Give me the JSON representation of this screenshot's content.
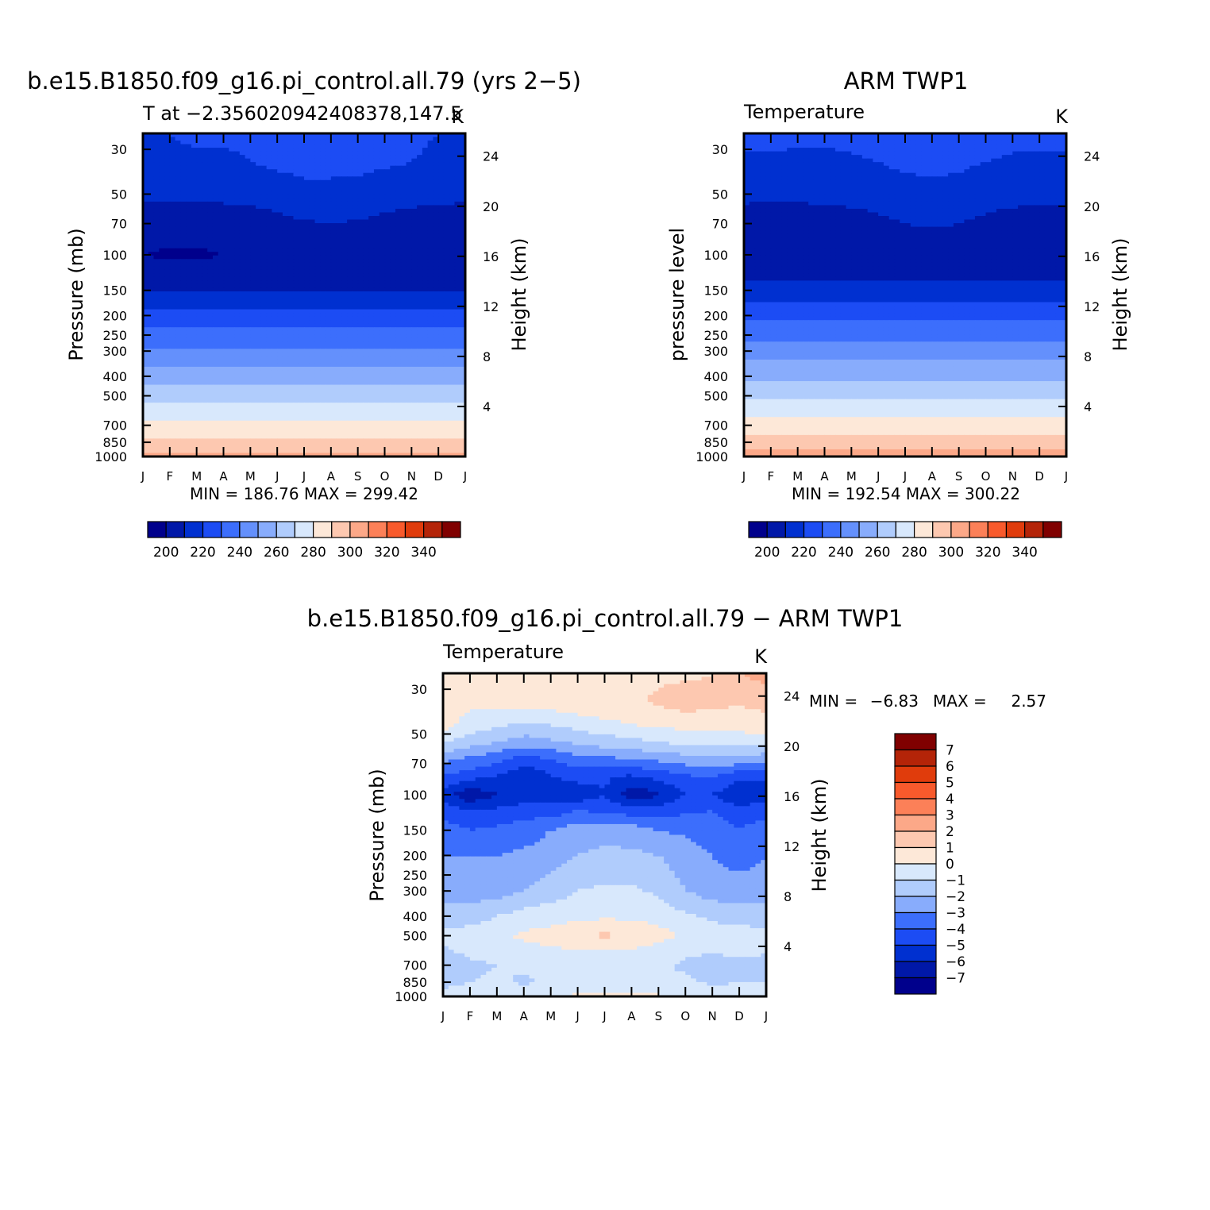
{
  "palette": {
    "temperature": [
      "#00008c",
      "#0018a8",
      "#0030d0",
      "#1c4cf4",
      "#3c6efc",
      "#6490fc",
      "#88acfc",
      "#b0ccfc",
      "#d8e8fc",
      "#fde8d8",
      "#fdc8b0",
      "#fca888",
      "#fc8058",
      "#f85a2c",
      "#e03c0c",
      "#b42408",
      "#800000"
    ],
    "difference": [
      "#00008c",
      "#0018a8",
      "#0030d0",
      "#1c4cf4",
      "#3c6efc",
      "#88acfc",
      "#b0ccfc",
      "#d8e8fc",
      "#fde8d8",
      "#fdc8b0",
      "#fca888",
      "#fc8058",
      "#f85a2c",
      "#e03c0c",
      "#b42408",
      "#800000"
    ]
  },
  "chart_data": [
    {
      "type": "heatmap",
      "title": "b.e15.B1850.f09_g16.pi_control.all.79 (yrs 2−5)",
      "subtitle_left": "T at −2.356020942408378,147.5",
      "units": "K",
      "ylabel": "Pressure (mb)",
      "ylabel_right": "Height (km)",
      "x_tick_labels": [
        "J",
        "F",
        "M",
        "A",
        "M",
        "J",
        "J",
        "A",
        "S",
        "O",
        "N",
        "D",
        "J"
      ],
      "y_ticks": [
        30,
        50,
        70,
        100,
        150,
        200,
        250,
        300,
        400,
        500,
        700,
        850,
        1000
      ],
      "height_ticks": [
        4,
        8,
        12,
        16,
        20,
        24
      ],
      "ylim": [
        1000,
        25
      ],
      "yscale": "log",
      "stats": "MIN = 186.76 MAX = 299.42",
      "colorbar_labels": [
        "200",
        "220",
        "240",
        "260",
        "280",
        "300",
        "320",
        "340"
      ],
      "colorbar_levels": [
        190,
        195,
        200,
        205,
        210,
        215,
        220,
        225,
        230,
        235,
        240,
        245,
        250,
        255,
        260,
        265,
        270,
        275,
        280,
        285,
        290,
        295,
        300,
        305,
        310,
        315,
        320,
        325,
        330,
        335,
        340,
        345
      ],
      "profile_levels": [
        25,
        30,
        40,
        50,
        60,
        70,
        80,
        100,
        125,
        150,
        175,
        200,
        250,
        300,
        350,
        400,
        450,
        500,
        600,
        700,
        850,
        925,
        1000
      ],
      "profile_values": [
        214,
        213,
        208,
        205,
        200,
        196,
        193,
        190,
        192,
        200,
        207,
        213,
        223,
        231,
        238,
        245,
        251,
        256,
        266,
        273,
        282,
        287,
        291
      ],
      "fields": [
        {
          "p": 25,
          "values": [
            210,
            210,
            211,
            211,
            211,
            212,
            212,
            212,
            211,
            211,
            211,
            210,
            210
          ]
        },
        {
          "p": 35,
          "values": [
            209,
            209,
            209,
            209,
            210,
            211,
            212,
            212,
            212,
            211,
            210,
            209,
            209
          ]
        },
        {
          "p": 50,
          "values": [
            203,
            203,
            203,
            204,
            205,
            207,
            208,
            208,
            207,
            206,
            205,
            204,
            203
          ]
        },
        {
          "p": 60,
          "values": [
            197,
            196,
            196,
            197,
            198,
            201,
            203,
            204,
            203,
            201,
            199,
            198,
            197
          ]
        },
        {
          "p": 70,
          "values": [
            194,
            193,
            193,
            194,
            195,
            197,
            199,
            200,
            199,
            197,
            195,
            194,
            194
          ]
        },
        {
          "p": 100,
          "values": [
            190,
            189,
            189,
            190,
            191,
            191,
            192,
            192,
            192,
            191,
            190,
            190,
            190
          ]
        },
        {
          "p": 125,
          "values": [
            193,
            193,
            193,
            193,
            193,
            193,
            193,
            193,
            193,
            193,
            193,
            193,
            193
          ]
        },
        {
          "p": 150,
          "values": [
            200,
            200,
            200,
            200,
            200,
            200,
            200,
            200,
            200,
            200,
            200,
            200,
            200
          ]
        },
        {
          "p": 200,
          "values": [
            214,
            214,
            214,
            214,
            214,
            214,
            214,
            214,
            214,
            214,
            214,
            214,
            214
          ]
        },
        {
          "p": 300,
          "values": [
            232,
            232,
            232,
            232,
            232,
            232,
            232,
            232,
            232,
            232,
            232,
            232,
            232
          ]
        },
        {
          "p": 400,
          "values": [
            246,
            246,
            246,
            246,
            246,
            246,
            246,
            246,
            246,
            246,
            246,
            246,
            246
          ]
        },
        {
          "p": 500,
          "values": [
            256,
            256,
            256,
            256,
            257,
            257,
            257,
            257,
            256,
            256,
            256,
            256,
            256
          ]
        },
        {
          "p": 700,
          "values": [
            273,
            273,
            273,
            273,
            273,
            273,
            273,
            273,
            273,
            273,
            273,
            273,
            273
          ]
        },
        {
          "p": 850,
          "values": [
            282,
            282,
            282,
            282,
            282,
            283,
            283,
            283,
            282,
            282,
            282,
            282,
            282
          ]
        },
        {
          "p": 1000,
          "values": [
            292,
            292,
            292,
            292,
            292,
            292,
            293,
            293,
            292,
            292,
            292,
            292,
            292
          ]
        }
      ]
    },
    {
      "type": "heatmap",
      "title": "ARM TWP1",
      "subtitle_left": "Temperature",
      "units": "K",
      "ylabel": "pressure level",
      "ylabel_right": "Height (km)",
      "x_tick_labels": [
        "J",
        "F",
        "M",
        "A",
        "M",
        "J",
        "J",
        "A",
        "S",
        "O",
        "N",
        "D",
        "J"
      ],
      "y_ticks": [
        30,
        50,
        70,
        100,
        150,
        200,
        250,
        300,
        400,
        500,
        700,
        850,
        1000
      ],
      "height_ticks": [
        4,
        8,
        12,
        16,
        20,
        24
      ],
      "ylim": [
        1000,
        25
      ],
      "yscale": "log",
      "stats": "MIN = 192.54 MAX = 300.22",
      "colorbar_labels": [
        "200",
        "220",
        "240",
        "260",
        "280",
        "300",
        "320",
        "340"
      ],
      "fields": [
        {
          "p": 25,
          "values": [
            212,
            212,
            212,
            212,
            212,
            212,
            212,
            212,
            212,
            212,
            212,
            212,
            212
          ]
        },
        {
          "p": 35,
          "values": [
            209,
            209,
            208,
            208,
            209,
            210,
            211,
            211,
            211,
            210,
            209,
            209,
            209
          ]
        },
        {
          "p": 50,
          "values": [
            203,
            203,
            203,
            204,
            205,
            207,
            208,
            209,
            208,
            206,
            205,
            204,
            203
          ]
        },
        {
          "p": 60,
          "values": [
            198,
            197,
            197,
            198,
            199,
            201,
            203,
            204,
            203,
            201,
            199,
            198,
            198
          ]
        },
        {
          "p": 70,
          "values": [
            195,
            194,
            194,
            195,
            196,
            198,
            200,
            201,
            200,
            198,
            196,
            195,
            195
          ]
        },
        {
          "p": 100,
          "values": [
            192,
            192,
            192,
            192,
            193,
            193,
            194,
            195,
            194,
            193,
            192,
            192,
            192
          ]
        },
        {
          "p": 125,
          "values": [
            196,
            196,
            196,
            196,
            196,
            196,
            196,
            196,
            196,
            196,
            196,
            196,
            196
          ]
        },
        {
          "p": 150,
          "values": [
            204,
            204,
            204,
            204,
            204,
            204,
            204,
            204,
            204,
            204,
            204,
            204,
            204
          ]
        },
        {
          "p": 200,
          "values": [
            217,
            217,
            217,
            217,
            217,
            217,
            217,
            217,
            217,
            217,
            217,
            217,
            217
          ]
        },
        {
          "p": 300,
          "values": [
            235,
            235,
            235,
            235,
            235,
            235,
            235,
            235,
            235,
            235,
            235,
            235,
            235
          ]
        },
        {
          "p": 400,
          "values": [
            248,
            248,
            248,
            248,
            248,
            248,
            248,
            248,
            248,
            248,
            248,
            248,
            248
          ]
        },
        {
          "p": 500,
          "values": [
            258,
            258,
            258,
            258,
            258,
            258,
            258,
            258,
            258,
            258,
            258,
            258,
            258
          ]
        },
        {
          "p": 700,
          "values": [
            275,
            275,
            275,
            275,
            275,
            275,
            275,
            275,
            275,
            275,
            275,
            275,
            275
          ]
        },
        {
          "p": 850,
          "values": [
            285,
            285,
            285,
            285,
            285,
            285,
            285,
            285,
            285,
            285,
            285,
            285,
            285
          ]
        },
        {
          "p": 1000,
          "values": [
            296,
            296,
            296,
            296,
            296,
            296,
            296,
            296,
            296,
            296,
            296,
            296,
            296
          ]
        }
      ]
    },
    {
      "type": "heatmap",
      "title": "b.e15.B1850.f09_g16.pi_control.all.79 − ARM TWP1",
      "subtitle_left": "Temperature",
      "units": "K",
      "ylabel": "Pressure (mb)",
      "ylabel_right": "Height (km)",
      "x_tick_labels": [
        "J",
        "F",
        "M",
        "A",
        "M",
        "J",
        "J",
        "A",
        "S",
        "O",
        "N",
        "D",
        "J"
      ],
      "y_ticks": [
        30,
        50,
        70,
        100,
        150,
        200,
        250,
        300,
        400,
        500,
        700,
        850,
        1000
      ],
      "height_ticks": [
        4,
        8,
        12,
        16,
        20,
        24
      ],
      "ylim": [
        1000,
        25
      ],
      "yscale": "log",
      "stats_min_label": "MIN =",
      "stats_min": "−6.83",
      "stats_max_label": "MAX =",
      "stats_max": "2.57",
      "colorbar_levels": [
        -7,
        -6,
        -5,
        -4,
        -3,
        -2,
        -1,
        0,
        1,
        2,
        3,
        4,
        5,
        6,
        7
      ],
      "colorbar_labels": [
        "7",
        "6",
        "5",
        "4",
        "3",
        "2",
        "1",
        "0",
        "−1",
        "−2",
        "−3",
        "−4",
        "−5",
        "−6",
        "−7"
      ],
      "fields": [
        {
          "p": 25,
          "values": [
            0.5,
            0.6,
            0.5,
            0.8,
            1.0,
            1.0,
            0.8,
            0.8,
            0.9,
            0.8,
            1.0,
            2.0,
            2.5
          ]
        },
        {
          "p": 35,
          "values": [
            0.3,
            0.3,
            0.3,
            0.4,
            0.5,
            0.7,
            0.8,
            0.9,
            1.1,
            1.5,
            1.2,
            1.1,
            1.2
          ]
        },
        {
          "p": 45,
          "values": [
            0.5,
            -0.5,
            -0.8,
            -1.2,
            -1.0,
            -0.6,
            -0.3,
            0.0,
            0.2,
            0.3,
            0.4,
            0.5,
            0.8
          ]
        },
        {
          "p": 55,
          "values": [
            -1.0,
            -1.5,
            -2.0,
            -2.5,
            -2.2,
            -1.8,
            -1.5,
            -1.3,
            -1.0,
            -0.8,
            -0.8,
            -0.7,
            -0.5
          ]
        },
        {
          "p": 65,
          "values": [
            -2.5,
            -3.0,
            -3.5,
            -4.2,
            -3.8,
            -3.2,
            -3.0,
            -2.8,
            -2.5,
            -2.2,
            -2.0,
            -2.0,
            -2.5
          ]
        },
        {
          "p": 80,
          "values": [
            -4.0,
            -4.5,
            -5.0,
            -5.8,
            -5.0,
            -4.5,
            -4.8,
            -5.0,
            -4.5,
            -4.0,
            -3.8,
            -4.5,
            -4.8
          ]
        },
        {
          "p": 100,
          "values": [
            -5.5,
            -6.8,
            -6.0,
            -5.5,
            -5.5,
            -5.8,
            -5.0,
            -6.8,
            -6.2,
            -5.0,
            -5.0,
            -6.0,
            -5.5
          ]
        },
        {
          "p": 120,
          "values": [
            -4.5,
            -5.0,
            -4.8,
            -4.5,
            -4.5,
            -4.0,
            -4.2,
            -4.5,
            -4.5,
            -4.2,
            -4.0,
            -4.5,
            -4.5
          ]
        },
        {
          "p": 150,
          "values": [
            -3.5,
            -4.0,
            -3.8,
            -3.5,
            -3.0,
            -2.5,
            -2.3,
            -2.5,
            -3.0,
            -3.2,
            -3.5,
            -4.0,
            -3.5
          ]
        },
        {
          "p": 200,
          "values": [
            -3.0,
            -3.0,
            -3.0,
            -2.8,
            -2.5,
            -2.0,
            -1.8,
            -1.8,
            -2.0,
            -2.5,
            -3.0,
            -3.5,
            -3.0
          ]
        },
        {
          "p": 300,
          "values": [
            -2.5,
            -2.5,
            -2.5,
            -2.0,
            -1.5,
            -1.0,
            -0.8,
            -0.8,
            -1.2,
            -2.0,
            -2.5,
            -2.5,
            -2.5
          ]
        },
        {
          "p": 400,
          "values": [
            -1.5,
            -1.5,
            -1.0,
            -0.6,
            -0.4,
            -0.3,
            -0.2,
            -0.2,
            -0.4,
            -0.8,
            -1.2,
            -1.5,
            -1.5
          ]
        },
        {
          "p": 500,
          "values": [
            -0.8,
            -0.5,
            -0.2,
            0.2,
            0.4,
            0.8,
            1.2,
            0.8,
            0.4,
            -0.2,
            -0.5,
            -0.5,
            -0.6
          ]
        },
        {
          "p": 600,
          "values": [
            -1.2,
            -0.8,
            -0.6,
            -0.4,
            -0.2,
            -0.1,
            -0.1,
            -0.2,
            -0.4,
            -0.8,
            -0.9,
            -0.8,
            -0.9
          ]
        },
        {
          "p": 700,
          "values": [
            -1.8,
            -1.2,
            -1.0,
            -0.8,
            -0.6,
            -0.5,
            -0.6,
            -0.6,
            -0.8,
            -1.2,
            -1.5,
            -1.3,
            -1.4
          ]
        },
        {
          "p": 850,
          "values": [
            -1.3,
            -1.0,
            -0.8,
            -1.2,
            -0.7,
            -0.5,
            -0.5,
            -0.6,
            -0.7,
            -0.8,
            -1.2,
            -1.0,
            -1.0
          ]
        },
        {
          "p": 1000,
          "values": [
            -0.6,
            -0.5,
            -0.4,
            -0.2,
            -0.1,
            0.1,
            0.2,
            0.2,
            0.1,
            -0.2,
            -0.4,
            -0.5,
            -0.6
          ]
        }
      ]
    }
  ]
}
